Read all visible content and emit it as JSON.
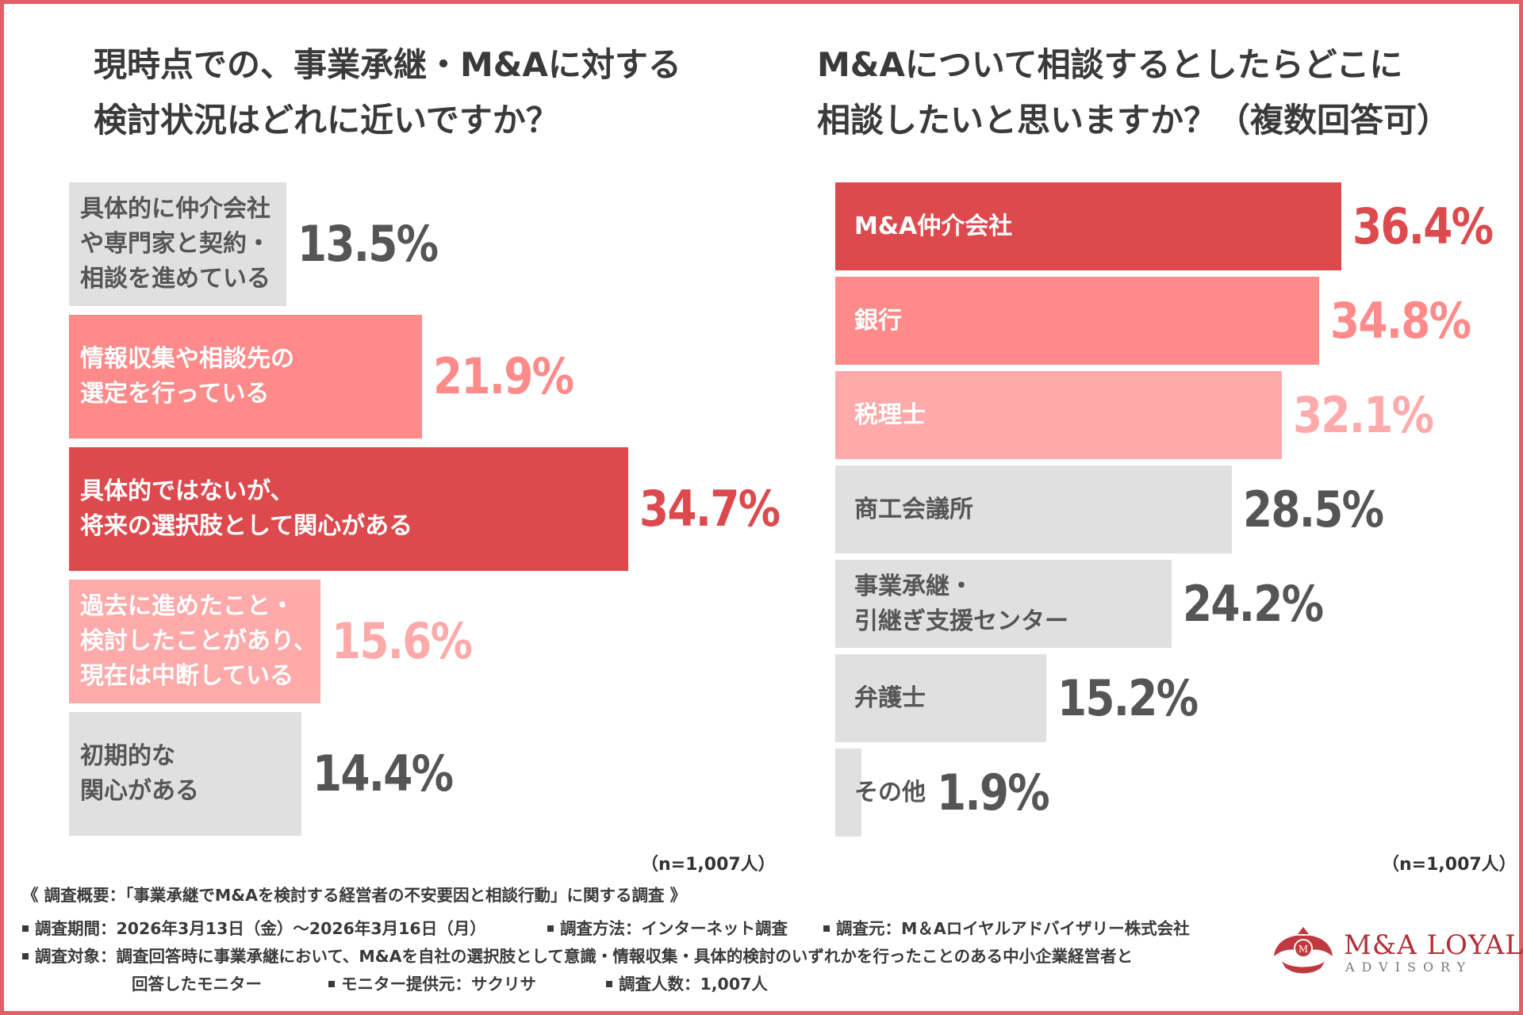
{
  "left_title": "現時点での、事業承継・M&Aに対する\n検討状況はどれに近いですか？",
  "right_title": "M&Aについて相談するとしたらどこに\n相談したいと思いますか？（複数回答可）",
  "chart_data": [
    {
      "type": "bar",
      "orientation": "horizontal",
      "title": "現時点での、事業承継・M&Aに対する検討状況はどれに近いですか？",
      "categories": [
        "具体的に仲介会社\nや専門家と契約・\n相談を進めている",
        "情報収集や相談先の\n選定を行っている",
        "具体的ではないが、\n将来の選択肢として関心がある",
        "過去に進めたこと・\n検討したことがあり、\n現在は中断している",
        "初期的な\n関心がある"
      ],
      "values": [
        13.5,
        21.9,
        34.7,
        15.6,
        14.4
      ],
      "value_labels": [
        "13.5%",
        "21.9%",
        "34.7%",
        "15.6%",
        "14.4%"
      ],
      "bar_colors": [
        "#e0e0e0",
        "#ff8a8a",
        "#dd4a4e",
        "#ffaaaa",
        "#e0e0e0"
      ],
      "label_colors": [
        "#555555",
        "#ffffff",
        "#ffffff",
        "#ffffff",
        "#555555"
      ],
      "value_colors": [
        "#555555",
        "#ff8a8a",
        "#dd4a4e",
        "#ffaaaa",
        "#555555"
      ],
      "n_label": "（n=1,007人）"
    },
    {
      "type": "bar",
      "orientation": "horizontal",
      "title": "M&Aについて相談するとしたらどこに相談したいと思いますか？（複数回答可）",
      "categories": [
        "M&A仲介会社",
        "銀行",
        "税理士",
        "商工会議所",
        "事業承継・\n引継ぎ支援センター",
        "弁護士",
        "その他"
      ],
      "values": [
        36.4,
        34.8,
        32.1,
        28.5,
        24.2,
        15.2,
        1.9
      ],
      "value_labels": [
        "36.4%",
        "34.8%",
        "32.1%",
        "28.5%",
        "24.2%",
        "15.2%",
        "1.9%"
      ],
      "bar_colors": [
        "#dd4a4e",
        "#ff8a8a",
        "#ffaaaa",
        "#e0e0e0",
        "#e0e0e0",
        "#e0e0e0",
        "#e0e0e0"
      ],
      "label_colors": [
        "#ffffff",
        "#ffffff",
        "#ffffff",
        "#555555",
        "#555555",
        "#555555",
        "#555555"
      ],
      "value_colors": [
        "#dd4a4e",
        "#ff8a8a",
        "#ffaaaa",
        "#555555",
        "#555555",
        "#555555",
        "#555555"
      ],
      "n_label": "（n=1,007人）"
    }
  ],
  "footer": {
    "summary": "《 調査概要：「事業承継でM&Aを検討する経営者の不安要因と相談行動」に関する調査 》",
    "period": "調査期間：2026年3月13日（金）〜2026年3月16日（月）",
    "method": "調査方法：インターネット調査",
    "source": "調査元：M＆Aロイヤルアドバイザリー株式会社",
    "target_line1": "調査対象：調査回答時に事業承継において、M&Aを自社の選択肢として意識・情報収集・具体的検討のいずれかを行ったことのある中小企業経営者と",
    "target_line2": "回答したモニター",
    "monitor": "モニター提供元：サクリサ",
    "count": "調査人数：1,007人"
  },
  "logo": {
    "name": "M&A LOYAL",
    "sub": "ADVISORY"
  },
  "colors": {
    "frame": "#e06068",
    "accent": "#dd4a4e"
  }
}
